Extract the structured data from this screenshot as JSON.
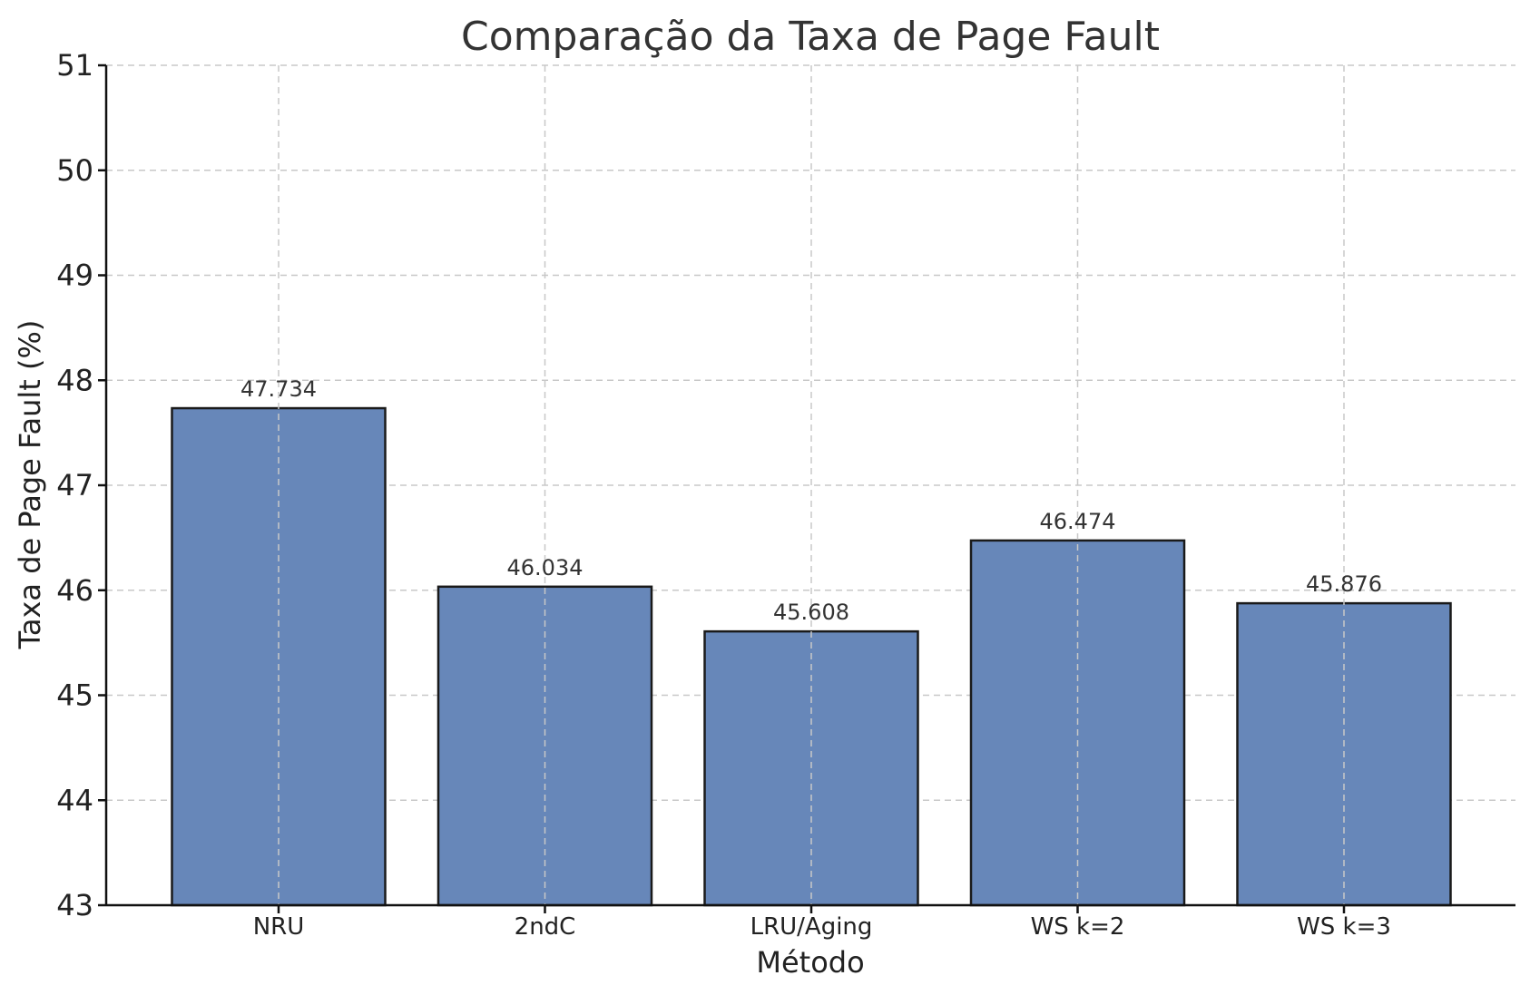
{
  "chart_data": {
    "type": "bar",
    "title": "Comparação da Taxa de Page Fault",
    "xlabel": "Método",
    "ylabel": "Taxa de Page Fault (%)",
    "categories": [
      "NRU",
      "2ndC",
      "LRU/Aging",
      "WS k=2",
      "WS k=3"
    ],
    "values": [
      47.734,
      46.034,
      45.608,
      46.474,
      45.876
    ],
    "data_labels": [
      "47.734",
      "46.034",
      "45.608",
      "46.474",
      "45.876"
    ],
    "ylim": [
      43,
      51
    ],
    "y_ticks": [
      43,
      44,
      45,
      46,
      47,
      48,
      49,
      50,
      51
    ],
    "grid": true,
    "legend": "none",
    "bar_color": "#6787b9",
    "bar_edge_color": "#1a1a1a"
  }
}
